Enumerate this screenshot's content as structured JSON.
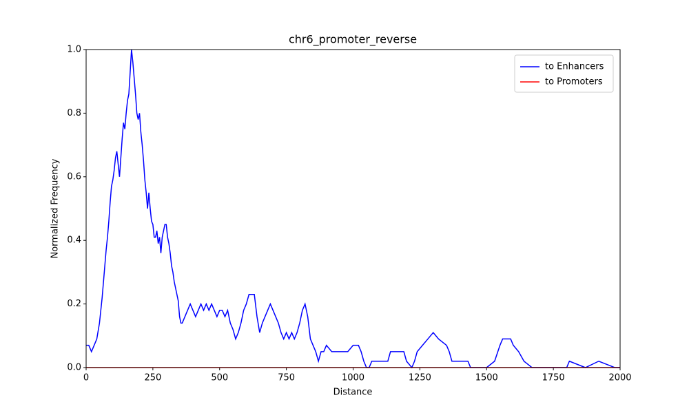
{
  "chart_data": {
    "type": "line",
    "title": "chr6_promoter_reverse",
    "x_label": "Distance",
    "y_label": "Normalized Frequency",
    "xlim": [
      0,
      2000
    ],
    "ylim": [
      0,
      1
    ],
    "xticks": [
      0,
      250,
      500,
      750,
      1000,
      1250,
      1500,
      1750,
      2000
    ],
    "yticks": [
      {
        "value": 0,
        "label": "0.0"
      },
      {
        "value": 0.2,
        "label": "0.2"
      },
      {
        "value": 0.4,
        "label": "0.4"
      },
      {
        "value": 0.6,
        "label": "0.6"
      },
      {
        "value": 0.8,
        "label": "0.8"
      },
      {
        "value": 1,
        "label": "1.0"
      }
    ],
    "legend": "upper right",
    "grid": false,
    "series": [
      {
        "name": "to Enhancers",
        "color": "#0000ff",
        "x": [
          0,
          10,
          20,
          30,
          40,
          50,
          55,
          60,
          65,
          70,
          75,
          80,
          85,
          90,
          95,
          100,
          105,
          110,
          115,
          120,
          125,
          130,
          135,
          140,
          145,
          150,
          155,
          160,
          165,
          170,
          175,
          180,
          185,
          190,
          195,
          200,
          205,
          210,
          215,
          220,
          225,
          230,
          235,
          240,
          245,
          250,
          255,
          260,
          265,
          270,
          275,
          280,
          285,
          290,
          295,
          300,
          305,
          310,
          315,
          320,
          325,
          330,
          335,
          340,
          345,
          350,
          355,
          360,
          370,
          380,
          390,
          400,
          410,
          420,
          430,
          440,
          450,
          460,
          470,
          480,
          490,
          500,
          510,
          520,
          530,
          540,
          550,
          560,
          570,
          580,
          590,
          600,
          610,
          620,
          630,
          640,
          650,
          660,
          670,
          680,
          690,
          700,
          710,
          720,
          730,
          740,
          750,
          760,
          770,
          780,
          790,
          800,
          810,
          820,
          830,
          840,
          850,
          860,
          870,
          880,
          890,
          900,
          920,
          940,
          960,
          980,
          1000,
          1020,
          1030,
          1040,
          1050,
          1060,
          1070,
          1100,
          1130,
          1140,
          1160,
          1190,
          1200,
          1220,
          1230,
          1240,
          1260,
          1280,
          1300,
          1320,
          1350,
          1360,
          1370,
          1400,
          1430,
          1440,
          1500,
          1530,
          1550,
          1560,
          1590,
          1600,
          1620,
          1640,
          1670,
          1800,
          1810,
          1870,
          1920,
          1980,
          2000
        ],
        "values": [
          0.07,
          0.07,
          0.05,
          0.07,
          0.09,
          0.14,
          0.18,
          0.22,
          0.27,
          0.32,
          0.37,
          0.41,
          0.46,
          0.52,
          0.57,
          0.59,
          0.62,
          0.66,
          0.68,
          0.64,
          0.6,
          0.66,
          0.72,
          0.77,
          0.75,
          0.8,
          0.84,
          0.86,
          0.93,
          1.0,
          0.96,
          0.91,
          0.86,
          0.8,
          0.78,
          0.8,
          0.74,
          0.7,
          0.65,
          0.59,
          0.55,
          0.5,
          0.55,
          0.5,
          0.46,
          0.45,
          0.41,
          0.41,
          0.43,
          0.39,
          0.41,
          0.36,
          0.41,
          0.43,
          0.45,
          0.45,
          0.41,
          0.39,
          0.36,
          0.32,
          0.3,
          0.27,
          0.25,
          0.23,
          0.21,
          0.16,
          0.14,
          0.14,
          0.16,
          0.18,
          0.2,
          0.18,
          0.16,
          0.18,
          0.2,
          0.18,
          0.2,
          0.18,
          0.2,
          0.18,
          0.16,
          0.18,
          0.18,
          0.16,
          0.18,
          0.14,
          0.12,
          0.09,
          0.11,
          0.14,
          0.18,
          0.2,
          0.23,
          0.23,
          0.23,
          0.16,
          0.11,
          0.14,
          0.16,
          0.18,
          0.2,
          0.18,
          0.16,
          0.14,
          0.11,
          0.09,
          0.11,
          0.09,
          0.11,
          0.09,
          0.11,
          0.14,
          0.18,
          0.2,
          0.16,
          0.09,
          0.07,
          0.05,
          0.02,
          0.05,
          0.05,
          0.07,
          0.05,
          0.05,
          0.05,
          0.05,
          0.07,
          0.07,
          0.05,
          0.02,
          0.0,
          0.0,
          0.02,
          0.02,
          0.02,
          0.05,
          0.05,
          0.05,
          0.02,
          0.0,
          0.02,
          0.05,
          0.07,
          0.09,
          0.11,
          0.09,
          0.07,
          0.05,
          0.02,
          0.02,
          0.02,
          0.0,
          0.0,
          0.02,
          0.07,
          0.09,
          0.09,
          0.07,
          0.05,
          0.02,
          0.0,
          0.0,
          0.02,
          0.0,
          0.02,
          0.0,
          0.0
        ]
      },
      {
        "name": "to Promoters",
        "color": "#ff0000",
        "x": [
          0,
          2000
        ],
        "values": [
          0,
          0
        ]
      }
    ]
  }
}
